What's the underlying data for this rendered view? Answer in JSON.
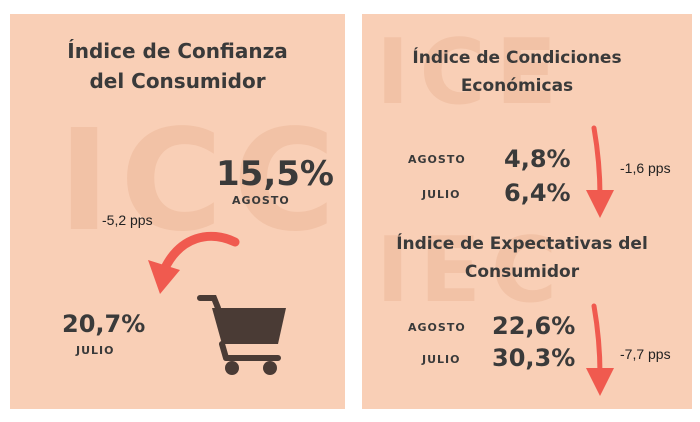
{
  "left": {
    "title": "Índice de Confianza del Consumidor",
    "watermark": "ICC",
    "current": {
      "value": "15,5%",
      "label": "AGOSTO"
    },
    "previous": {
      "value": "20,7%",
      "label": "JULIO"
    },
    "change": "-5,2 pps",
    "icon": "shopping-cart-icon"
  },
  "ice": {
    "title": "Índice de Condiciones Económicas",
    "watermark": "ICE",
    "rows": [
      {
        "label": "AGOSTO",
        "value": "4,8%"
      },
      {
        "label": "JULIO",
        "value": "6,4%"
      }
    ],
    "change": "-1,6 pps"
  },
  "iec": {
    "title": "Índice de Expectativas del Consumidor",
    "watermark": "IEC",
    "rows": [
      {
        "label": "AGOSTO",
        "value": "22,6%"
      },
      {
        "label": "JULIO",
        "value": "30,3%"
      }
    ],
    "change": "-7,7 pps"
  },
  "colors": {
    "panel": "#f9cfb6",
    "arrow": "#f05a4f",
    "text": "#3a3a3a",
    "cart": "#4a3b35"
  }
}
